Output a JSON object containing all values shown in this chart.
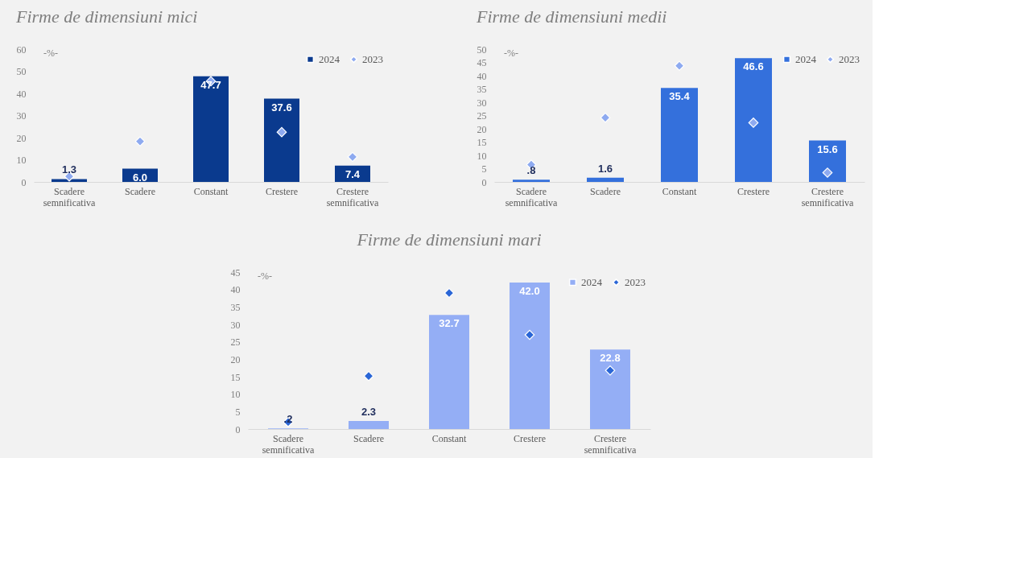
{
  "chart_data": [
    {
      "type": "bar",
      "title": "Firme de dimensiuni mici",
      "categories": [
        "Scadere semnificativa",
        "Scadere",
        "Constant",
        "Crestere",
        "Crestere semnificativa"
      ],
      "ylim": [
        0,
        60
      ],
      "yticks": [
        0,
        10,
        20,
        30,
        40,
        50,
        60
      ],
      "legend": "top right",
      "annotations": [
        "-%-"
      ],
      "series": [
        {
          "name": "2024",
          "color": "#0a3a8e",
          "values": [
            1.3,
            6.0,
            47.7,
            37.6,
            7.4
          ],
          "value_labels": [
            "1.3",
            "6.0",
            "47.7",
            "37.6",
            "7.4"
          ]
        },
        {
          "name": "2023",
          "type": "scatter",
          "marker": "diamond",
          "color": "#8eaaf0",
          "values": [
            2.5,
            18.3,
            45.5,
            22.5,
            11.3
          ]
        }
      ]
    },
    {
      "type": "bar",
      "title": "Firme de dimensiuni medii",
      "categories": [
        "Scadere semnificativa",
        "Scadere",
        "Constant",
        "Crestere",
        "Crestere semnificativa"
      ],
      "ylim": [
        0,
        50
      ],
      "yticks": [
        0,
        5,
        10,
        15,
        20,
        25,
        30,
        35,
        40,
        45,
        50
      ],
      "legend": "top right",
      "annotations": [
        "-%-"
      ],
      "series": [
        {
          "name": "2024",
          "color": "#3470dc",
          "values": [
            0.8,
            1.6,
            35.4,
            46.6,
            15.6
          ],
          "value_labels": [
            ".8",
            "1.6",
            "35.4",
            "46.6",
            "15.6"
          ]
        },
        {
          "name": "2023",
          "type": "scatter",
          "marker": "diamond",
          "color": "#8eaaf0",
          "values": [
            6.5,
            24.2,
            43.7,
            22.3,
            3.5
          ]
        }
      ]
    },
    {
      "type": "bar",
      "title": "Firme de dimensiuni mari",
      "categories": [
        "Scadere semnificativa",
        "Scadere",
        "Constant",
        "Crestere",
        "Crestere semnificativa"
      ],
      "ylim": [
        0,
        45
      ],
      "yticks": [
        0,
        5,
        10,
        15,
        20,
        25,
        30,
        35,
        40,
        45
      ],
      "legend": "top right",
      "annotations": [
        "-%-"
      ],
      "series": [
        {
          "name": "2024",
          "color": "#94aef5",
          "values": [
            0.2,
            2.3,
            32.7,
            42.0,
            22.8
          ],
          "value_labels": [
            ".2",
            "2.3",
            "32.7",
            "42.0",
            "22.8"
          ]
        },
        {
          "name": "2023",
          "type": "scatter",
          "marker": "diamond",
          "color": "#2a66d6",
          "values": [
            2.0,
            15.2,
            39.0,
            27.0,
            16.8
          ]
        }
      ]
    }
  ]
}
